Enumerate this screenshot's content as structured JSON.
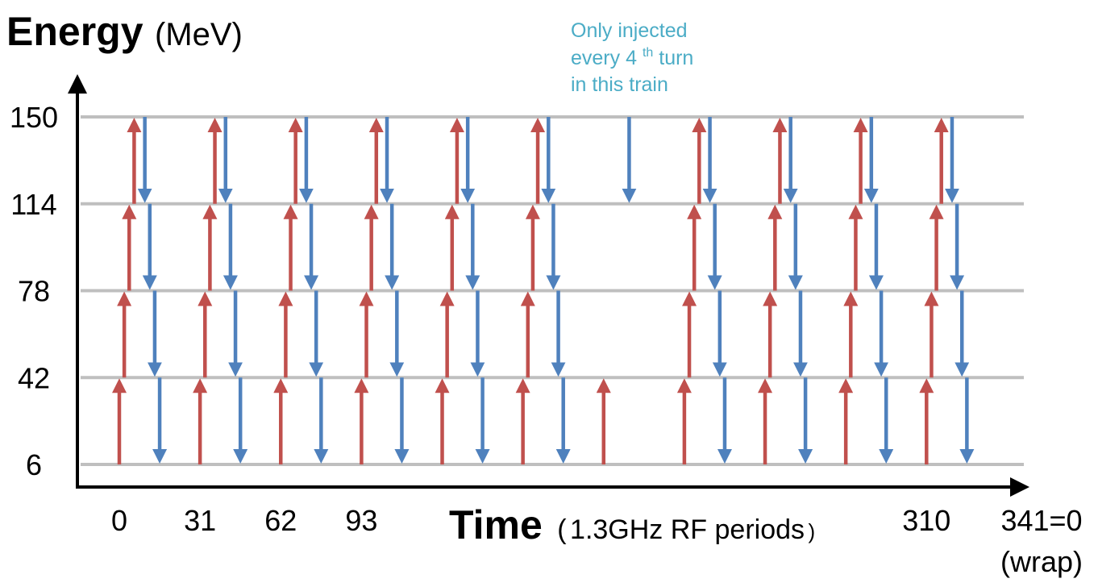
{
  "title": {
    "bold": "Energy",
    "unit": "(MeV)"
  },
  "xaxis": {
    "bold": "Time",
    "unit_open": "(",
    "unit": "1.3GHz RF periods",
    "unit_close": ")"
  },
  "annotation": {
    "line1": "Only injected",
    "line2_pre": "every ",
    "line2_num": "4",
    "line2_sup": "th",
    "line2_post": " turn",
    "line3": "in this train",
    "color": "#4bacc6"
  },
  "colors": {
    "up": "#c0504d",
    "down": "#4f81bd",
    "grid": "#bfbfbf",
    "axis": "#000000"
  },
  "chart_data": {
    "type": "diagram",
    "energy_levels": [
      6,
      42,
      78,
      114,
      150
    ],
    "y_tick_labels": [
      "150",
      "114",
      "78",
      "42",
      "6"
    ],
    "x_tick_labels": [
      {
        "label": "0",
        "time": 0
      },
      {
        "label": "31",
        "time": 31
      },
      {
        "label": "62",
        "time": 62
      },
      {
        "label": "93",
        "time": 93
      },
      {
        "label": "310",
        "time": 310
      },
      {
        "label": "341=0",
        "time": 341
      }
    ],
    "x_wrap_note": "(wrap)",
    "xlim": [
      0,
      341
    ],
    "bunch_trains": [
      {
        "start": 0,
        "up_stages": 4,
        "down_stages": 4,
        "down_from": 150
      },
      {
        "start": 31,
        "up_stages": 4,
        "down_stages": 4,
        "down_from": 150
      },
      {
        "start": 62,
        "up_stages": 4,
        "down_stages": 4,
        "down_from": 150
      },
      {
        "start": 93,
        "up_stages": 4,
        "down_stages": 4,
        "down_from": 150
      },
      {
        "start": 124,
        "up_stages": 4,
        "down_stages": 4,
        "down_from": 150
      },
      {
        "start": 155,
        "up_stages": 4,
        "down_stages": 4,
        "down_from": 150
      },
      {
        "start": 186,
        "up_stages": 1,
        "down_stages": 1,
        "down_from": 150
      },
      {
        "start": 217,
        "up_stages": 4,
        "down_stages": 4,
        "down_from": 150
      },
      {
        "start": 248,
        "up_stages": 4,
        "down_stages": 4,
        "down_from": 150
      },
      {
        "start": 279,
        "up_stages": 4,
        "down_stages": 4,
        "down_from": 150
      },
      {
        "start": 310,
        "up_stages": 4,
        "down_stages": 4,
        "down_from": 150
      }
    ],
    "stage_time_step": 1.9,
    "down_offset": 9.8
  }
}
